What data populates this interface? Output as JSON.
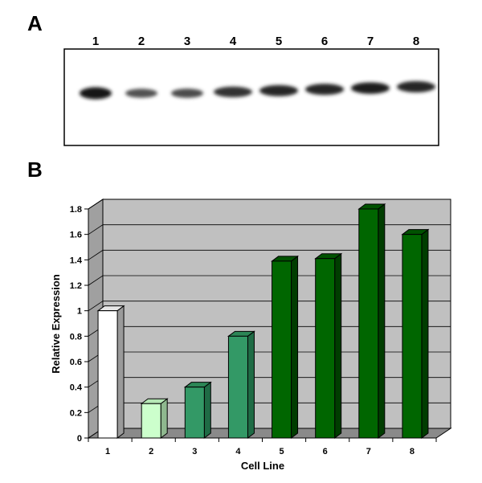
{
  "panels": {
    "a": "A",
    "b": "B"
  },
  "blot": {
    "lanes": [
      "1",
      "2",
      "3",
      "4",
      "5",
      "6",
      "7",
      "8"
    ],
    "intensities": [
      1.0,
      0.45,
      0.5,
      0.75,
      0.85,
      0.85,
      0.9,
      0.85
    ]
  },
  "chart_data": {
    "type": "bar",
    "title": "",
    "xlabel": "Cell Line",
    "ylabel": "Relative Expression",
    "categories": [
      "1",
      "2",
      "3",
      "4",
      "5",
      "6",
      "7",
      "8"
    ],
    "values": [
      1.0,
      0.27,
      0.4,
      0.8,
      1.39,
      1.41,
      1.8,
      1.6
    ],
    "ylim": [
      0,
      1.8
    ],
    "yticks": [
      "0",
      "0.2",
      "0.4",
      "0.6",
      "0.8",
      "1",
      "1.2",
      "1.4",
      "1.6",
      "1.8"
    ],
    "grid": true,
    "bar_colors": [
      "#ffffff",
      "#ccffcc",
      "#339966",
      "#339966",
      "#006600",
      "#006600",
      "#006600",
      "#006600"
    ],
    "bar_side_colors": [
      "#9a9a9a",
      "#8fb88f",
      "#1f6b45",
      "#1f6b45",
      "#003d00",
      "#003d00",
      "#003d00",
      "#003d00"
    ],
    "bar_top_colors": [
      "#e6e6e6",
      "#b5e6b5",
      "#2c8656",
      "#2c8656",
      "#005200",
      "#005200",
      "#005200",
      "#005200"
    ],
    "plot_background": "#c0c0c0"
  }
}
